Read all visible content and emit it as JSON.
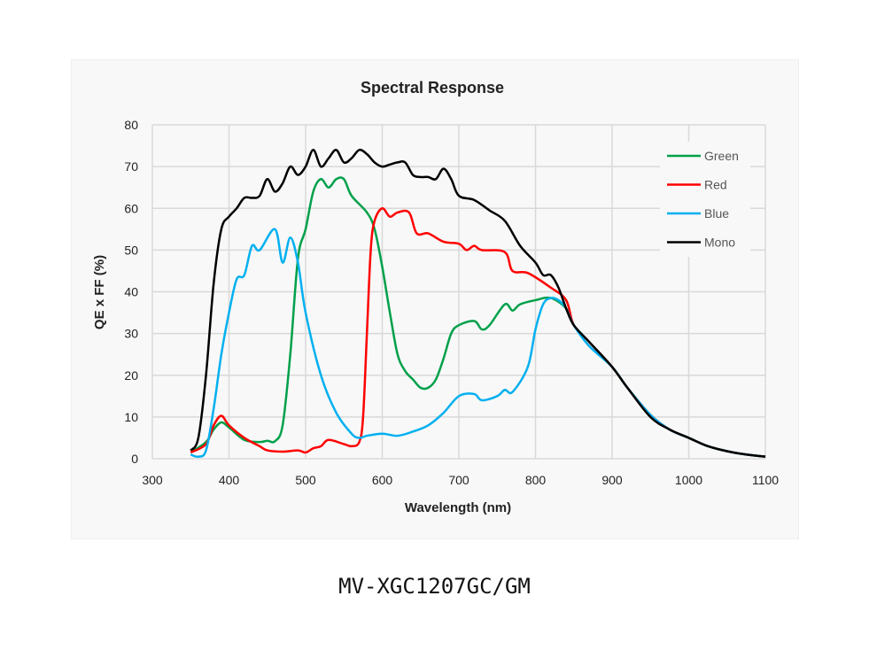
{
  "caption": "MV-XGC1207GC/GM",
  "chart_data": {
    "type": "line",
    "title": "Spectral Response",
    "xlabel": "Wavelength (nm)",
    "ylabel": "QE x FF (%)",
    "xlim": [
      300,
      1100
    ],
    "ylim": [
      0,
      80
    ],
    "xticks": [
      300,
      400,
      500,
      600,
      700,
      800,
      900,
      1000,
      1100
    ],
    "yticks": [
      0,
      10,
      20,
      30,
      40,
      50,
      60,
      70,
      80
    ],
    "grid": true,
    "legend_position": "top-right",
    "series": [
      {
        "name": "Green",
        "color": "#00a04a",
        "points": [
          [
            350,
            1.5
          ],
          [
            370,
            4
          ],
          [
            380,
            7
          ],
          [
            390,
            8.7
          ],
          [
            400,
            7.5
          ],
          [
            420,
            4.5
          ],
          [
            440,
            4
          ],
          [
            450,
            4.3
          ],
          [
            460,
            4.2
          ],
          [
            470,
            8
          ],
          [
            480,
            25
          ],
          [
            490,
            48
          ],
          [
            500,
            55
          ],
          [
            510,
            64
          ],
          [
            520,
            67
          ],
          [
            530,
            65
          ],
          [
            540,
            67
          ],
          [
            550,
            67
          ],
          [
            560,
            63
          ],
          [
            580,
            59
          ],
          [
            590,
            55
          ],
          [
            600,
            46
          ],
          [
            610,
            35
          ],
          [
            620,
            25
          ],
          [
            630,
            21
          ],
          [
            640,
            19
          ],
          [
            650,
            17
          ],
          [
            660,
            17
          ],
          [
            670,
            19
          ],
          [
            680,
            24
          ],
          [
            690,
            30
          ],
          [
            700,
            32
          ],
          [
            720,
            33
          ],
          [
            730,
            31
          ],
          [
            740,
            32
          ],
          [
            760,
            37
          ],
          [
            770,
            35.5
          ],
          [
            780,
            37
          ],
          [
            800,
            38
          ],
          [
            820,
            38.5
          ],
          [
            840,
            36
          ],
          [
            850,
            32
          ],
          [
            870,
            28
          ],
          [
            900,
            22
          ],
          [
            920,
            17
          ],
          [
            950,
            10.5
          ],
          [
            975,
            7
          ],
          [
            1000,
            5
          ],
          [
            1025,
            3
          ],
          [
            1050,
            1.8
          ],
          [
            1075,
            1
          ],
          [
            1100,
            0.5
          ]
        ]
      },
      {
        "name": "Red",
        "color": "#ff0000",
        "points": [
          [
            350,
            1.5
          ],
          [
            370,
            3.5
          ],
          [
            380,
            8
          ],
          [
            390,
            10.3
          ],
          [
            400,
            8
          ],
          [
            420,
            5
          ],
          [
            440,
            3
          ],
          [
            450,
            2
          ],
          [
            470,
            1.7
          ],
          [
            490,
            2
          ],
          [
            500,
            1.5
          ],
          [
            510,
            2.5
          ],
          [
            520,
            3
          ],
          [
            530,
            4.5
          ],
          [
            550,
            3.5
          ],
          [
            560,
            3
          ],
          [
            570,
            4
          ],
          [
            575,
            10
          ],
          [
            580,
            30
          ],
          [
            585,
            50
          ],
          [
            590,
            57
          ],
          [
            600,
            60
          ],
          [
            610,
            58
          ],
          [
            620,
            59
          ],
          [
            635,
            59
          ],
          [
            645,
            54
          ],
          [
            660,
            54
          ],
          [
            680,
            52
          ],
          [
            700,
            51.5
          ],
          [
            710,
            50
          ],
          [
            720,
            51
          ],
          [
            730,
            50
          ],
          [
            760,
            49.5
          ],
          [
            770,
            45
          ],
          [
            790,
            44.5
          ],
          [
            820,
            41
          ],
          [
            840,
            38
          ],
          [
            850,
            32
          ],
          [
            870,
            28
          ],
          [
            900,
            22
          ],
          [
            920,
            17
          ],
          [
            950,
            10.5
          ],
          [
            975,
            7
          ],
          [
            1000,
            5
          ],
          [
            1025,
            3
          ],
          [
            1050,
            1.8
          ],
          [
            1075,
            1
          ],
          [
            1100,
            0.5
          ]
        ]
      },
      {
        "name": "Blue",
        "color": "#00b0f0",
        "points": [
          [
            350,
            1
          ],
          [
            360,
            0.5
          ],
          [
            370,
            2
          ],
          [
            380,
            12
          ],
          [
            390,
            25
          ],
          [
            400,
            35
          ],
          [
            410,
            43
          ],
          [
            420,
            44
          ],
          [
            430,
            51
          ],
          [
            440,
            50
          ],
          [
            460,
            55
          ],
          [
            470,
            47
          ],
          [
            480,
            53
          ],
          [
            490,
            47
          ],
          [
            500,
            35
          ],
          [
            520,
            20
          ],
          [
            540,
            11
          ],
          [
            560,
            6
          ],
          [
            570,
            5
          ],
          [
            580,
            5.5
          ],
          [
            600,
            6
          ],
          [
            620,
            5.5
          ],
          [
            640,
            6.5
          ],
          [
            660,
            8
          ],
          [
            680,
            11
          ],
          [
            700,
            15
          ],
          [
            720,
            15.5
          ],
          [
            730,
            14
          ],
          [
            750,
            15
          ],
          [
            760,
            16.5
          ],
          [
            770,
            16
          ],
          [
            790,
            22
          ],
          [
            800,
            31
          ],
          [
            810,
            37
          ],
          [
            820,
            38.5
          ],
          [
            830,
            38
          ],
          [
            840,
            36
          ],
          [
            850,
            32
          ],
          [
            870,
            27
          ],
          [
            900,
            22
          ],
          [
            920,
            17
          ],
          [
            950,
            10.5
          ],
          [
            975,
            7
          ],
          [
            1000,
            5
          ],
          [
            1025,
            3
          ],
          [
            1050,
            1.8
          ],
          [
            1075,
            1
          ],
          [
            1100,
            0.5
          ]
        ]
      },
      {
        "name": "Mono",
        "color": "#000000",
        "points": [
          [
            350,
            2
          ],
          [
            360,
            5
          ],
          [
            370,
            20
          ],
          [
            380,
            42
          ],
          [
            390,
            55
          ],
          [
            400,
            58
          ],
          [
            410,
            60
          ],
          [
            420,
            62.5
          ],
          [
            430,
            62.5
          ],
          [
            440,
            63
          ],
          [
            450,
            67
          ],
          [
            460,
            64
          ],
          [
            470,
            66
          ],
          [
            480,
            70
          ],
          [
            490,
            68
          ],
          [
            500,
            70
          ],
          [
            510,
            74
          ],
          [
            520,
            70
          ],
          [
            530,
            72
          ],
          [
            540,
            74
          ],
          [
            550,
            71
          ],
          [
            560,
            72
          ],
          [
            570,
            74
          ],
          [
            580,
            73
          ],
          [
            590,
            71
          ],
          [
            600,
            70
          ],
          [
            610,
            70.5
          ],
          [
            620,
            71
          ],
          [
            630,
            71
          ],
          [
            640,
            68
          ],
          [
            650,
            67.5
          ],
          [
            660,
            67.5
          ],
          [
            670,
            67
          ],
          [
            680,
            69.5
          ],
          [
            690,
            67
          ],
          [
            700,
            63
          ],
          [
            720,
            62
          ],
          [
            740,
            59.5
          ],
          [
            760,
            57
          ],
          [
            780,
            51
          ],
          [
            800,
            47
          ],
          [
            810,
            44
          ],
          [
            820,
            44
          ],
          [
            830,
            41
          ],
          [
            840,
            36
          ],
          [
            850,
            32
          ],
          [
            870,
            28
          ],
          [
            900,
            22
          ],
          [
            920,
            17
          ],
          [
            950,
            10
          ],
          [
            975,
            7
          ],
          [
            1000,
            5
          ],
          [
            1025,
            3
          ],
          [
            1050,
            1.8
          ],
          [
            1075,
            1
          ],
          [
            1100,
            0.5
          ]
        ]
      }
    ]
  }
}
